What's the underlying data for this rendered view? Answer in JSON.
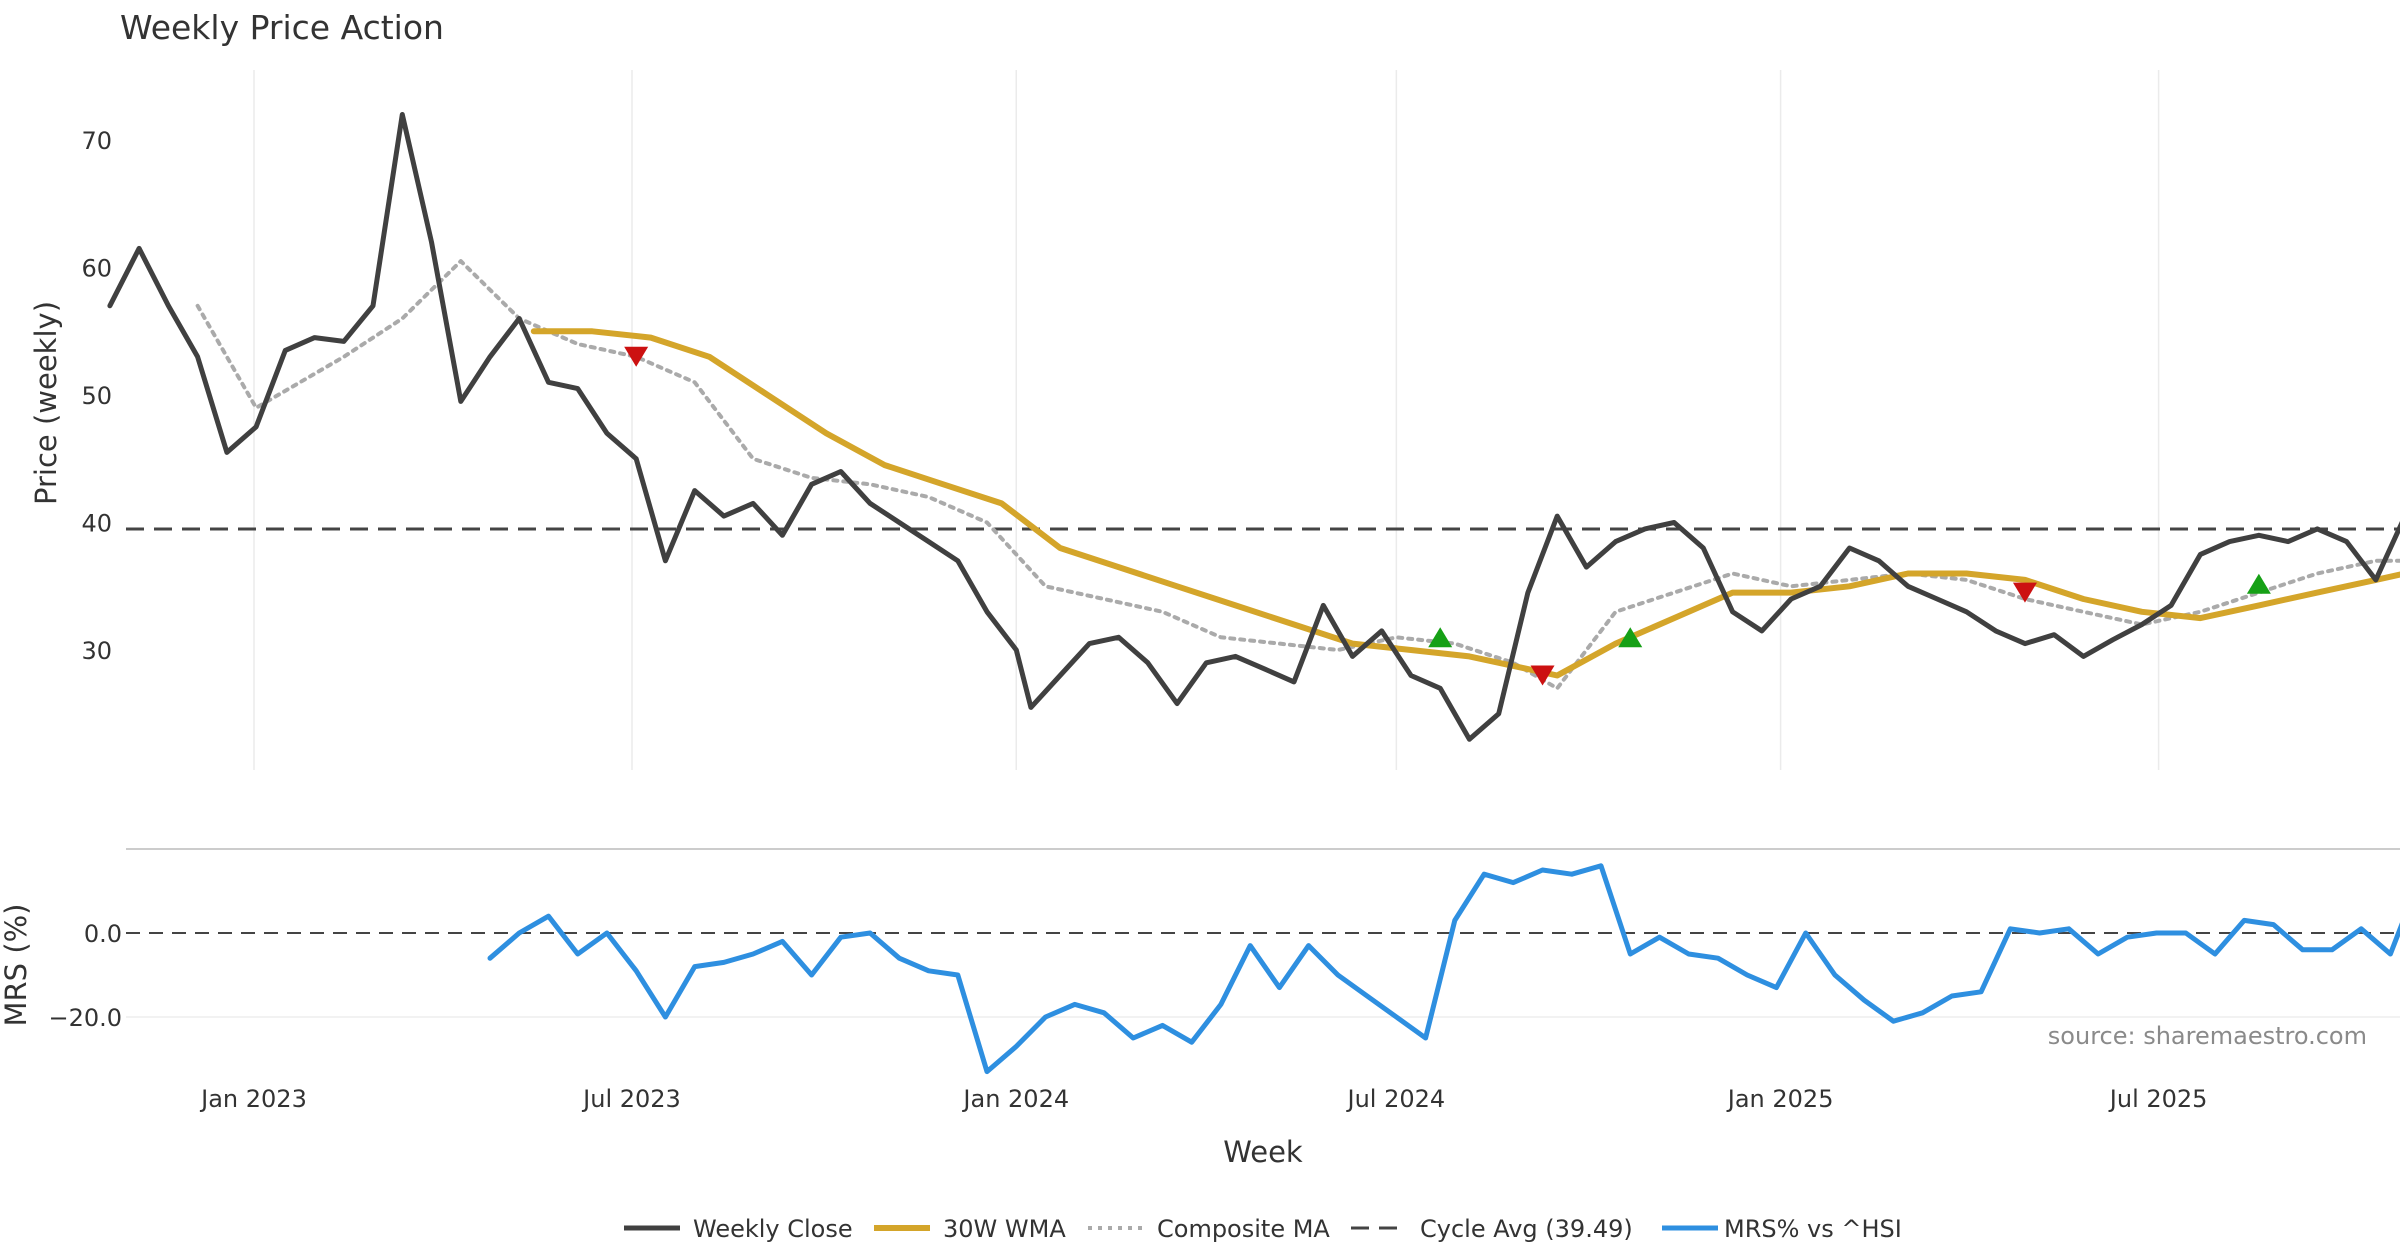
{
  "chart_data": {
    "type": "line",
    "title": "Weekly Price Action",
    "source_note": "source: sharemaestro.com",
    "x_axis": {
      "label": "Week",
      "tick_labels": [
        "Jan 2023",
        "Jul 2023",
        "Jan 2024",
        "Jul 2024",
        "Jan 2025",
        "Jul 2025"
      ],
      "tick_dates": [
        "2023-01-01",
        "2023-07-01",
        "2024-01-01",
        "2024-07-01",
        "2025-01-01",
        "2025-07-01"
      ],
      "range": [
        "2022-10-24",
        "2025-10-27"
      ]
    },
    "price_panel": {
      "ylabel": "Price (weekly)",
      "ylim": [
        20,
        75
      ],
      "yticks": [
        30,
        40,
        50,
        60,
        70
      ],
      "cycle_avg": 39.49,
      "series": [
        {
          "name": "Weekly Close",
          "color": "#404040",
          "style": "solid",
          "dates": [
            "2022-10-24",
            "2022-11-07",
            "2022-11-21",
            "2022-12-05",
            "2022-12-19",
            "2023-01-02",
            "2023-01-16",
            "2023-01-30",
            "2023-02-13",
            "2023-02-27",
            "2023-03-13",
            "2023-03-27",
            "2023-04-10",
            "2023-04-24",
            "2023-05-08",
            "2023-05-22",
            "2023-06-05",
            "2023-06-19",
            "2023-07-03",
            "2023-07-17",
            "2023-07-31",
            "2023-08-14",
            "2023-08-28",
            "2023-09-11",
            "2023-09-25",
            "2023-10-09",
            "2023-10-23",
            "2023-11-06",
            "2023-11-20",
            "2023-12-04",
            "2023-12-18",
            "2024-01-01",
            "2024-01-08",
            "2024-01-22",
            "2024-02-05",
            "2024-02-19",
            "2024-03-04",
            "2024-03-18",
            "2024-04-01",
            "2024-04-15",
            "2024-04-29",
            "2024-05-13",
            "2024-05-27",
            "2024-06-10",
            "2024-06-24",
            "2024-07-08",
            "2024-07-22",
            "2024-08-05",
            "2024-08-19",
            "2024-09-02",
            "2024-09-16",
            "2024-09-30",
            "2024-10-14",
            "2024-10-28",
            "2024-11-11",
            "2024-11-25",
            "2024-12-09",
            "2024-12-23",
            "2025-01-06",
            "2025-01-20",
            "2025-02-03",
            "2025-02-17",
            "2025-03-03",
            "2025-03-17",
            "2025-03-31",
            "2025-04-14",
            "2025-04-28",
            "2025-05-12",
            "2025-05-26",
            "2025-06-09",
            "2025-06-23",
            "2025-07-07",
            "2025-07-21",
            "2025-08-04",
            "2025-08-18",
            "2025-09-01",
            "2025-09-15",
            "2025-09-29",
            "2025-10-13",
            "2025-10-27"
          ],
          "values": [
            57,
            61.5,
            57,
            53,
            45.5,
            47.5,
            53.5,
            54.5,
            54.2,
            57,
            72,
            62,
            49.5,
            53,
            56,
            51,
            50.5,
            47,
            45,
            37,
            42.5,
            40.5,
            41.5,
            39,
            43,
            44,
            41.5,
            40,
            38.5,
            37,
            33,
            30,
            25.5,
            28,
            30.5,
            31,
            29,
            25.8,
            29,
            29.5,
            28.5,
            27.5,
            33.5,
            29.5,
            31.5,
            28,
            27,
            23,
            25,
            34.5,
            40.5,
            36.5,
            38.5,
            39.5,
            40,
            38,
            33,
            31.5,
            34,
            35,
            38,
            37,
            35,
            34,
            33,
            31.5,
            30.5,
            31.2,
            29.5,
            30.8,
            32,
            33.5,
            37.5,
            38.5,
            39,
            38.5,
            39.5,
            38.5,
            35.5,
            40.5
          ]
        },
        {
          "name": "30W WMA",
          "color": "#D4A52A",
          "style": "solid",
          "dates": [
            "2023-05-15",
            "2023-06-12",
            "2023-07-10",
            "2023-08-07",
            "2023-09-04",
            "2023-10-02",
            "2023-10-30",
            "2023-11-27",
            "2023-12-25",
            "2024-01-22",
            "2024-02-19",
            "2024-03-18",
            "2024-04-15",
            "2024-05-13",
            "2024-06-10",
            "2024-07-08",
            "2024-08-05",
            "2024-09-02",
            "2024-09-16",
            "2024-10-14",
            "2024-11-11",
            "2024-12-09",
            "2025-01-06",
            "2025-02-03",
            "2025-03-03",
            "2025-03-31",
            "2025-04-28",
            "2025-05-26",
            "2025-06-23",
            "2025-07-21",
            "2025-08-18",
            "2025-09-15",
            "2025-10-13",
            "2025-10-27"
          ],
          "values": [
            55,
            55,
            54.5,
            53,
            50,
            47,
            44.5,
            43,
            41.5,
            38,
            36.5,
            35,
            33.5,
            32,
            30.5,
            30,
            29.5,
            28.5,
            28,
            30.5,
            32.5,
            34.5,
            34.5,
            35,
            36,
            36,
            35.5,
            34,
            33,
            32.5,
            33.5,
            34.5,
            35.5,
            36
          ]
        },
        {
          "name": "Composite MA",
          "color": "#AAAAAA",
          "style": "dotted",
          "dates": [
            "2022-12-05",
            "2023-01-02",
            "2023-02-13",
            "2023-03-13",
            "2023-04-10",
            "2023-05-08",
            "2023-06-05",
            "2023-07-03",
            "2023-07-31",
            "2023-08-28",
            "2023-09-25",
            "2023-10-23",
            "2023-11-20",
            "2023-12-18",
            "2024-01-15",
            "2024-02-12",
            "2024-03-11",
            "2024-04-08",
            "2024-05-06",
            "2024-06-03",
            "2024-07-01",
            "2024-07-29",
            "2024-08-26",
            "2024-09-16",
            "2024-10-14",
            "2024-11-11",
            "2024-12-09",
            "2025-01-06",
            "2025-02-03",
            "2025-03-03",
            "2025-03-31",
            "2025-04-28",
            "2025-05-26",
            "2025-06-23",
            "2025-07-21",
            "2025-08-18",
            "2025-09-15",
            "2025-10-13",
            "2025-10-27"
          ],
          "values": [
            57,
            49,
            53,
            56,
            60.5,
            56,
            54,
            53,
            51,
            45,
            43.5,
            43,
            42,
            40,
            35,
            34,
            33,
            31,
            30.5,
            30,
            31,
            30.5,
            29,
            27,
            33,
            34.5,
            36,
            35,
            35.5,
            36,
            35.5,
            34,
            33,
            32,
            33,
            34.5,
            36,
            37,
            37
          ]
        }
      ],
      "sell_signals": [
        {
          "date": "2023-07-03",
          "price": 53
        },
        {
          "date": "2024-09-09",
          "price": 28
        },
        {
          "date": "2025-04-28",
          "price": 34.5
        }
      ],
      "buy_signals": [
        {
          "date": "2024-07-22",
          "price": 31
        },
        {
          "date": "2024-10-21",
          "price": 31
        },
        {
          "date": "2025-08-18",
          "price": 35.2
        }
      ]
    },
    "mrs_panel": {
      "ylabel": "MRS (%)",
      "ylim": [
        -33,
        20
      ],
      "yticks": [
        0.0,
        -20.0
      ],
      "ytick_labels": [
        "0.0",
        "−20.0"
      ],
      "zero_line": 0,
      "series": [
        {
          "name": "MRS% vs ^HSI",
          "color": "#2E8FE0",
          "style": "solid",
          "dates": [
            "2023-04-24",
            "2023-05-08",
            "2023-05-22",
            "2023-06-05",
            "2023-06-19",
            "2023-07-03",
            "2023-07-17",
            "2023-07-31",
            "2023-08-14",
            "2023-08-28",
            "2023-09-11",
            "2023-09-25",
            "2023-10-09",
            "2023-10-23",
            "2023-11-06",
            "2023-11-20",
            "2023-12-04",
            "2023-12-18",
            "2024-01-01",
            "2024-01-15",
            "2024-01-29",
            "2024-02-12",
            "2024-02-26",
            "2024-03-11",
            "2024-03-25",
            "2024-04-08",
            "2024-04-22",
            "2024-05-06",
            "2024-05-20",
            "2024-06-03",
            "2024-06-17",
            "2024-07-01",
            "2024-07-15",
            "2024-07-29",
            "2024-08-12",
            "2024-08-26",
            "2024-09-09",
            "2024-09-23",
            "2024-10-07",
            "2024-10-21",
            "2024-11-04",
            "2024-11-18",
            "2024-12-02",
            "2024-12-16",
            "2024-12-30",
            "2025-01-13",
            "2025-01-27",
            "2025-02-10",
            "2025-02-24",
            "2025-03-10",
            "2025-03-24",
            "2025-04-07",
            "2025-04-21",
            "2025-05-05",
            "2025-05-19",
            "2025-06-02",
            "2025-06-16",
            "2025-06-30",
            "2025-07-14",
            "2025-07-28",
            "2025-08-11",
            "2025-08-25",
            "2025-09-08",
            "2025-09-22",
            "2025-10-06",
            "2025-10-20",
            "2025-10-27"
          ],
          "values": [
            -6,
            0,
            4,
            -5,
            0,
            -9,
            -20,
            -8,
            -7,
            -5,
            -2,
            -10,
            -1,
            0,
            -6,
            -9,
            -10,
            -33,
            -27,
            -20,
            -17,
            -19,
            -25,
            -22,
            -26,
            -17,
            -3,
            -13,
            -3,
            -10,
            -15,
            -20,
            -25,
            3,
            14,
            12,
            15,
            14,
            16,
            -5,
            -1,
            -5,
            -6,
            -10,
            -13,
            0,
            -10,
            -16,
            -21,
            -19,
            -15,
            -14,
            1,
            0,
            1,
            -5,
            -1,
            0,
            0,
            -5,
            3,
            2,
            -4,
            -4,
            1,
            -5,
            4
          ]
        }
      ]
    },
    "legend": {
      "placement": "bottom-center",
      "entries": [
        "Weekly Close",
        "30W WMA",
        "Composite MA",
        "Cycle Avg (39.49)",
        "MRS% vs ^HSI"
      ]
    }
  }
}
